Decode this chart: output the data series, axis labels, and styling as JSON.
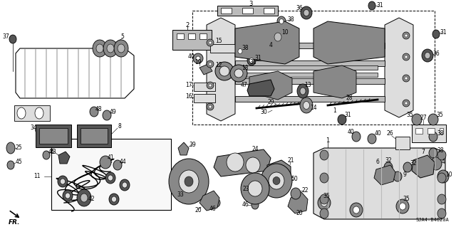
{
  "figsize": [
    6.4,
    3.19
  ],
  "dpi": 100,
  "background_color": "#ffffff",
  "diagram_code": "SJA4-B4020A",
  "image_b64": ""
}
